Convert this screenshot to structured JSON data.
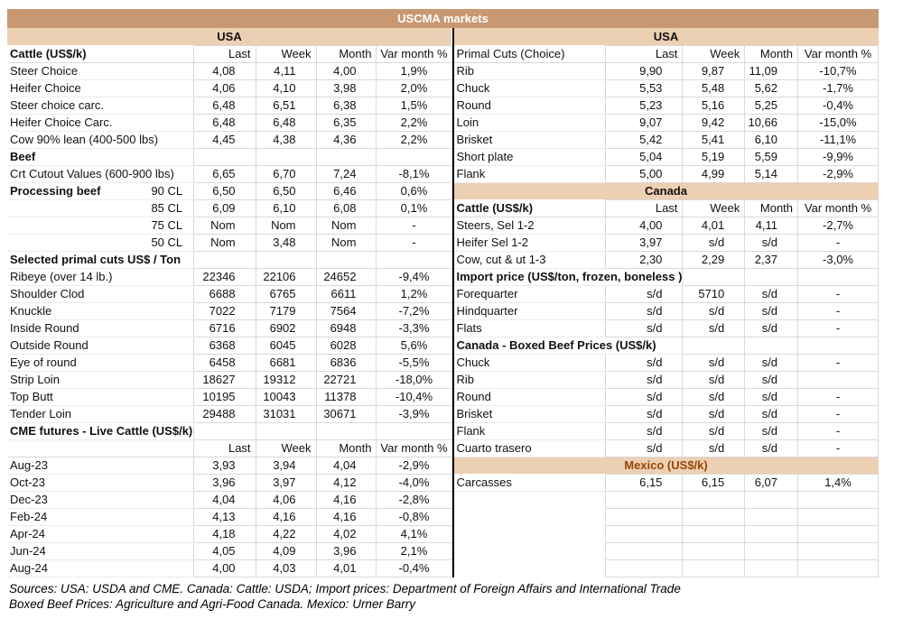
{
  "title": "USCMA markets",
  "columns": [
    "Last",
    "Week",
    "Month",
    "Var month %"
  ],
  "colors": {
    "title_bar": "#C89872",
    "region_band": "#EDCFB4",
    "mexico_label": "#974706"
  },
  "footer": {
    "line1": "Sources: USA: USDA and CME. Canada: Cattle: USDA; Import prices: Department of Foreign Affairs and International Trade",
    "line2": "Boxed Beef Prices: Agriculture and Agri-Food Canada. Mexico: Urner Barry"
  },
  "left_table": {
    "rows": [
      {
        "t": "band",
        "label": "USA"
      },
      {
        "t": "head",
        "label": "Cattle (US$/k)",
        "bold": true
      },
      {
        "t": "data",
        "label": "Steer Choice",
        "v": [
          "4,08",
          "4,11",
          "4,00",
          "1,9%"
        ]
      },
      {
        "t": "data",
        "label": "Heifer Choice",
        "v": [
          "4,06",
          "4,10",
          "3,98",
          "2,0%"
        ]
      },
      {
        "t": "data",
        "label": "Steer choice carc.",
        "v": [
          "6,48",
          "6,51",
          "6,38",
          "1,5%"
        ]
      },
      {
        "t": "data",
        "label": "Heifer Choice Carc.",
        "v": [
          "6,48",
          "6,48",
          "6,35",
          "2,2%"
        ]
      },
      {
        "t": "data",
        "label": "Cow 90% lean (400-500 lbs)",
        "v": [
          "4,45",
          "4,38",
          "4,36",
          "2,2%"
        ]
      },
      {
        "t": "sec",
        "label": "Beef"
      },
      {
        "t": "data",
        "label": "Crt Cutout Values (600-900 lbs)",
        "v": [
          "6,65",
          "6,70",
          "7,24",
          "-8,1%"
        ]
      },
      {
        "t": "data",
        "label": "Processing beef",
        "bold": true,
        "sub": "90 CL",
        "v": [
          "6,50",
          "6,50",
          "6,46",
          "0,6%"
        ]
      },
      {
        "t": "data",
        "label": "",
        "sub": "85 CL",
        "v": [
          "6,09",
          "6,10",
          "6,08",
          "0,1%"
        ]
      },
      {
        "t": "data",
        "label": "",
        "sub": "75 CL",
        "v": [
          "Nom",
          "Nom",
          "Nom",
          "-"
        ]
      },
      {
        "t": "data",
        "label": "",
        "sub": "50 CL",
        "v": [
          "Nom",
          "3,48",
          "Nom",
          "-"
        ]
      },
      {
        "t": "sec",
        "label": "Selected primal cuts US$ / Ton"
      },
      {
        "t": "data",
        "label": "Ribeye (over 14 lb.)",
        "v": [
          "22346",
          "22106",
          "24652",
          "-9,4%"
        ]
      },
      {
        "t": "data",
        "label": "Shoulder Clod",
        "v": [
          "6688",
          "6765",
          "6611",
          "1,2%"
        ]
      },
      {
        "t": "data",
        "label": "Knuckle",
        "v": [
          "7022",
          "7179",
          "7564",
          "-7,2%"
        ]
      },
      {
        "t": "data",
        "label": "Inside Round",
        "v": [
          "6716",
          "6902",
          "6948",
          "-3,3%"
        ]
      },
      {
        "t": "data",
        "label": "Outside Round",
        "v": [
          "6368",
          "6045",
          "6028",
          "5,6%"
        ]
      },
      {
        "t": "data",
        "label": "Eye of round",
        "v": [
          "6458",
          "6681",
          "6836",
          "-5,5%"
        ]
      },
      {
        "t": "data",
        "label": "Strip Loin",
        "v": [
          "18627",
          "19312",
          "22721",
          "-18,0%"
        ]
      },
      {
        "t": "data",
        "label": "Top Butt",
        "v": [
          "10195",
          "10043",
          "11378",
          "-10,4%"
        ]
      },
      {
        "t": "data",
        "label": "Tender Loin",
        "v": [
          "29488",
          "31031",
          "30671",
          "-3,9%"
        ]
      },
      {
        "t": "sec",
        "label": "CME futures - Live Cattle (US$/k)"
      },
      {
        "t": "head",
        "label": "",
        "bold": false
      },
      {
        "t": "data",
        "label": "Aug-23",
        "v": [
          "3,93",
          "3,94",
          "4,04",
          "-2,9%"
        ]
      },
      {
        "t": "data",
        "label": "Oct-23",
        "v": [
          "3,96",
          "3,97",
          "4,12",
          "-4,0%"
        ]
      },
      {
        "t": "data",
        "label": "Dec-23",
        "v": [
          "4,04",
          "4,06",
          "4,16",
          "-2,8%"
        ]
      },
      {
        "t": "data",
        "label": "Feb-24",
        "v": [
          "4,13",
          "4,16",
          "4,16",
          "-0,8%"
        ]
      },
      {
        "t": "data",
        "label": "Apr-24",
        "v": [
          "4,18",
          "4,22",
          "4,02",
          "4,1%"
        ]
      },
      {
        "t": "data",
        "label": "Jun-24",
        "v": [
          "4,05",
          "4,09",
          "3,96",
          "2,1%"
        ]
      },
      {
        "t": "data",
        "label": "Aug-24",
        "v": [
          "4,00",
          "4,03",
          "4,01",
          "-0,4%"
        ]
      }
    ]
  },
  "right_table": {
    "rows": [
      {
        "t": "band",
        "label": "USA"
      },
      {
        "t": "head",
        "label": "Primal Cuts (Choice)",
        "bold": false
      },
      {
        "t": "data",
        "label": "Rib",
        "v": [
          "9,90",
          "9,87",
          "11,09",
          "-10,7%"
        ]
      },
      {
        "t": "data",
        "label": "Chuck",
        "v": [
          "5,53",
          "5,48",
          "5,62",
          "-1,7%"
        ]
      },
      {
        "t": "data",
        "label": "Round",
        "v": [
          "5,23",
          "5,16",
          "5,25",
          "-0,4%"
        ]
      },
      {
        "t": "data",
        "label": "Loin",
        "v": [
          "9,07",
          "9,42",
          "10,66",
          "-15,0%"
        ]
      },
      {
        "t": "data",
        "label": "Brisket",
        "v": [
          "5,42",
          "5,41",
          "6,10",
          "-11,1%"
        ]
      },
      {
        "t": "data",
        "label": "Short plate",
        "v": [
          "5,04",
          "5,19",
          "5,59",
          "-9,9%"
        ]
      },
      {
        "t": "data",
        "label": "Flank",
        "v": [
          "5,00",
          "4,99",
          "5,14",
          "-2,9%"
        ]
      },
      {
        "t": "band",
        "label": "Canada"
      },
      {
        "t": "head",
        "label": "Cattle (US$/k)",
        "bold": true
      },
      {
        "t": "data",
        "label": "Steers, Sel 1-2",
        "v": [
          "4,00",
          "4,01",
          "4,11",
          "-2,7%"
        ]
      },
      {
        "t": "data",
        "label": "Heifer Sel 1-2",
        "v": [
          "3,97",
          "s/d",
          "s/d",
          "-"
        ]
      },
      {
        "t": "data",
        "label": "Cow, cut & ut 1-3",
        "v": [
          "2,30",
          "2,29",
          "2,37",
          "-3,0%"
        ]
      },
      {
        "t": "sec",
        "label": "Import price (US$/ton, frozen, boneless )"
      },
      {
        "t": "data",
        "label": "Forequarter",
        "v": [
          "s/d",
          "5710",
          "s/d",
          "-"
        ]
      },
      {
        "t": "data",
        "label": "Hindquarter",
        "v": [
          "s/d",
          "s/d",
          "s/d",
          "-"
        ]
      },
      {
        "t": "data",
        "label": "Flats",
        "v": [
          "s/d",
          "s/d",
          "s/d",
          "-"
        ]
      },
      {
        "t": "sec",
        "label": "Canada - Boxed Beef Prices (US$/k)"
      },
      {
        "t": "data",
        "label": "Chuck",
        "v": [
          "s/d",
          "s/d",
          "s/d",
          "-"
        ]
      },
      {
        "t": "data",
        "label": "Rib",
        "v": [
          "s/d",
          "s/d",
          "s/d",
          ""
        ]
      },
      {
        "t": "data",
        "label": "Round",
        "v": [
          "s/d",
          "s/d",
          "s/d",
          "-"
        ]
      },
      {
        "t": "data",
        "label": "Brisket",
        "v": [
          "s/d",
          "s/d",
          "s/d",
          "-"
        ]
      },
      {
        "t": "data",
        "label": "Flank",
        "v": [
          "s/d",
          "s/d",
          "s/d",
          "-"
        ]
      },
      {
        "t": "data",
        "label": "Cuarto trasero",
        "v": [
          "s/d",
          "s/d",
          "s/d",
          "-"
        ]
      },
      {
        "t": "band",
        "label": "Mexico (US$/k)",
        "accent": "mexico"
      },
      {
        "t": "data",
        "label": "Carcasses",
        "v": [
          "6,15",
          "6,15",
          "6,07",
          "1,4%"
        ]
      },
      {
        "t": "empty"
      },
      {
        "t": "empty"
      },
      {
        "t": "empty"
      },
      {
        "t": "empty"
      },
      {
        "t": "empty"
      }
    ]
  }
}
